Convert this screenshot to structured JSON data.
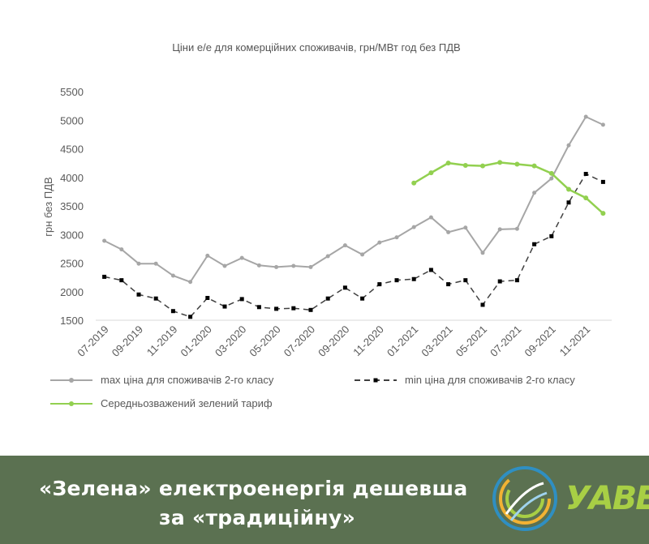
{
  "chart_data": {
    "type": "line",
    "title": "Ціни е/е для комерційних споживачів, грн/МВт год без ПДВ",
    "ylabel": "грн без ПДВ",
    "xlabel": "",
    "ylim": [
      1500,
      5500
    ],
    "yticks": [
      "5500",
      "5000",
      "4500",
      "4000",
      "3500",
      "3000",
      "2500",
      "2000",
      "1500"
    ],
    "x": [
      "07-2019",
      "08-2019",
      "09-2019",
      "10-2019",
      "11-2019",
      "12-2019",
      "01-2020",
      "02-2020",
      "03-2020",
      "04-2020",
      "05-2020",
      "06-2020",
      "07-2020",
      "08-2020",
      "09-2020",
      "10-2020",
      "11-2020",
      "12-2020",
      "01-2021",
      "02-2021",
      "03-2021",
      "04-2021",
      "05-2021",
      "06-2021",
      "07-2021",
      "08-2021",
      "09-2021",
      "10-2021",
      "11-2021",
      "12-2021"
    ],
    "xtick_labels": [
      "07-2019",
      "09-2019",
      "11-2019",
      "01-2020",
      "03-2020",
      "05-2020",
      "07-2020",
      "09-2020",
      "11-2020",
      "01-2021",
      "03-2021",
      "05-2021",
      "07-2021",
      "09-2021",
      "11-2021"
    ],
    "grid": false,
    "legend_position": "bottom",
    "series": [
      {
        "name": "max ціна для споживачів 2-го класу",
        "color": "#a6a6a6",
        "style": "solid",
        "values": [
          2890,
          2740,
          2490,
          2490,
          2280,
          2170,
          2630,
          2450,
          2590,
          2460,
          2430,
          2450,
          2430,
          2620,
          2810,
          2650,
          2860,
          2950,
          3130,
          3300,
          3040,
          3120,
          2680,
          3090,
          3100,
          3730,
          3980,
          4560,
          5060,
          4920
        ]
      },
      {
        "name": "min ціна для споживачів 2-го класу",
        "color": "#404040",
        "style": "dashed",
        "values": [
          2260,
          2200,
          1950,
          1880,
          1660,
          1560,
          1890,
          1740,
          1870,
          1730,
          1700,
          1710,
          1680,
          1880,
          2070,
          1880,
          2130,
          2200,
          2220,
          2380,
          2130,
          2200,
          1770,
          2180,
          2200,
          2830,
          2970,
          3560,
          4060,
          3920
        ]
      },
      {
        "name": "Середньозважений зелений тариф",
        "color": "#92d050",
        "style": "solid",
        "values": [
          null,
          null,
          null,
          null,
          null,
          null,
          null,
          null,
          null,
          null,
          null,
          null,
          null,
          null,
          null,
          null,
          null,
          null,
          3900,
          4080,
          4250,
          4210,
          4200,
          4260,
          4230,
          4200,
          4070,
          3790,
          3640,
          3370
        ]
      }
    ]
  },
  "banner": {
    "line1": "«Зелена» електроенергія дешевша",
    "line2": "за «традиційну»",
    "background": "#5b7151"
  },
  "logo": {
    "text": "УАВЕ",
    "color": "#a8cf45"
  }
}
